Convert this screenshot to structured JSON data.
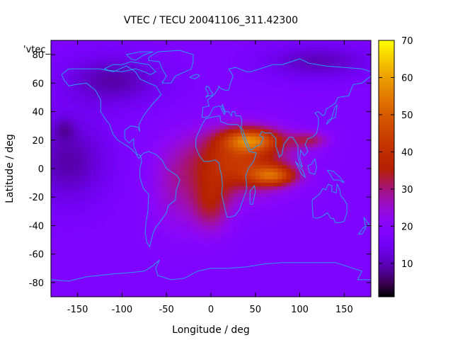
{
  "chart_data": {
    "type": "heatmap",
    "title": "VTEC / TECU 20041106_311.42300",
    "xlabel": "Longitude / deg",
    "ylabel": "Latitude / deg",
    "key_label": "'vtec_",
    "xlim": [
      -180,
      180
    ],
    "ylim": [
      -90,
      90
    ],
    "xticks": [
      -150,
      -100,
      -50,
      0,
      50,
      100,
      150
    ],
    "yticks": [
      -80,
      -60,
      -40,
      -20,
      0,
      20,
      40,
      60,
      80
    ],
    "colorbar": {
      "range": [
        1,
        70
      ],
      "ticks": [
        10,
        20,
        30,
        40,
        50,
        60,
        70
      ]
    },
    "features": {
      "background": 18,
      "dark_regions": [
        {
          "lon": -160,
          "lat": 5,
          "amp": -9,
          "slon": 45,
          "slat": 30
        },
        {
          "lon": -110,
          "lat": 62,
          "amp": -9,
          "slon": 55,
          "slat": 18
        },
        {
          "lon": 120,
          "lat": 75,
          "amp": -8,
          "slon": 60,
          "slat": 12
        },
        {
          "lon": -165,
          "lat": 28,
          "amp": -5,
          "slon": 12,
          "slat": 8
        }
      ],
      "enhancement_regions": [
        {
          "lon": 30,
          "lat": 5,
          "amp": 24,
          "slon": 55,
          "slat": 22
        },
        {
          "lon": 45,
          "lat": 20,
          "amp": 26,
          "slon": 32,
          "slat": 8
        },
        {
          "lon": 70,
          "lat": -5,
          "amp": 24,
          "slon": 26,
          "slat": 7
        },
        {
          "lon": 110,
          "lat": 20,
          "amp": 12,
          "slon": 22,
          "slat": 6
        },
        {
          "lon": 0,
          "lat": -25,
          "amp": 14,
          "slon": 22,
          "slat": 20
        },
        {
          "lon": -40,
          "lat": -15,
          "amp": 7,
          "slon": 28,
          "slat": 30
        }
      ]
    }
  }
}
